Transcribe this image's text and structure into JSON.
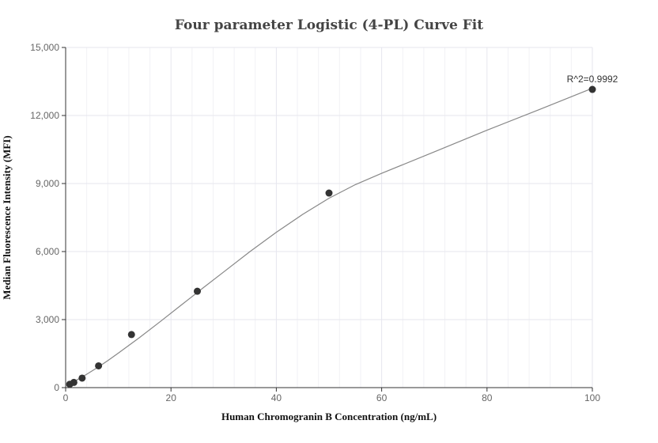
{
  "chart_data": {
    "type": "scatter",
    "title": "Four parameter Logistic (4-PL) Curve Fit",
    "xlabel": "Human Chromogranin B Concentration (ng/mL)",
    "ylabel": "Median Fluorescence Intensity (MFI)",
    "xlim": [
      0,
      100
    ],
    "ylim": [
      0,
      15000
    ],
    "x_ticks": [
      "0",
      "20",
      "40",
      "60",
      "80",
      "100"
    ],
    "y_ticks": [
      "0",
      "3,000",
      "6,000",
      "9,000",
      "12,000",
      "15,000"
    ],
    "grid": true,
    "points": {
      "x": [
        0.78,
        1.56,
        3.13,
        6.25,
        12.5,
        25,
        50,
        100
      ],
      "y": [
        150,
        230,
        420,
        960,
        2340,
        4250,
        8580,
        13150
      ]
    },
    "fit_curve": {
      "x": [
        0,
        2,
        4,
        6,
        8,
        10,
        14,
        18,
        22,
        26,
        30,
        35,
        40,
        45,
        50,
        55,
        60,
        70,
        80,
        90,
        100
      ],
      "y": [
        60,
        320,
        590,
        880,
        1190,
        1520,
        2200,
        2920,
        3650,
        4380,
        5100,
        6000,
        6850,
        7640,
        8350,
        8950,
        9450,
        10400,
        11350,
        12270,
        13200
      ]
    },
    "annotation": "R^2=0.9992",
    "colors": {
      "points": "#333333",
      "curve": "#888888",
      "grid": "#e6e6ee",
      "axis": "#333333"
    }
  }
}
